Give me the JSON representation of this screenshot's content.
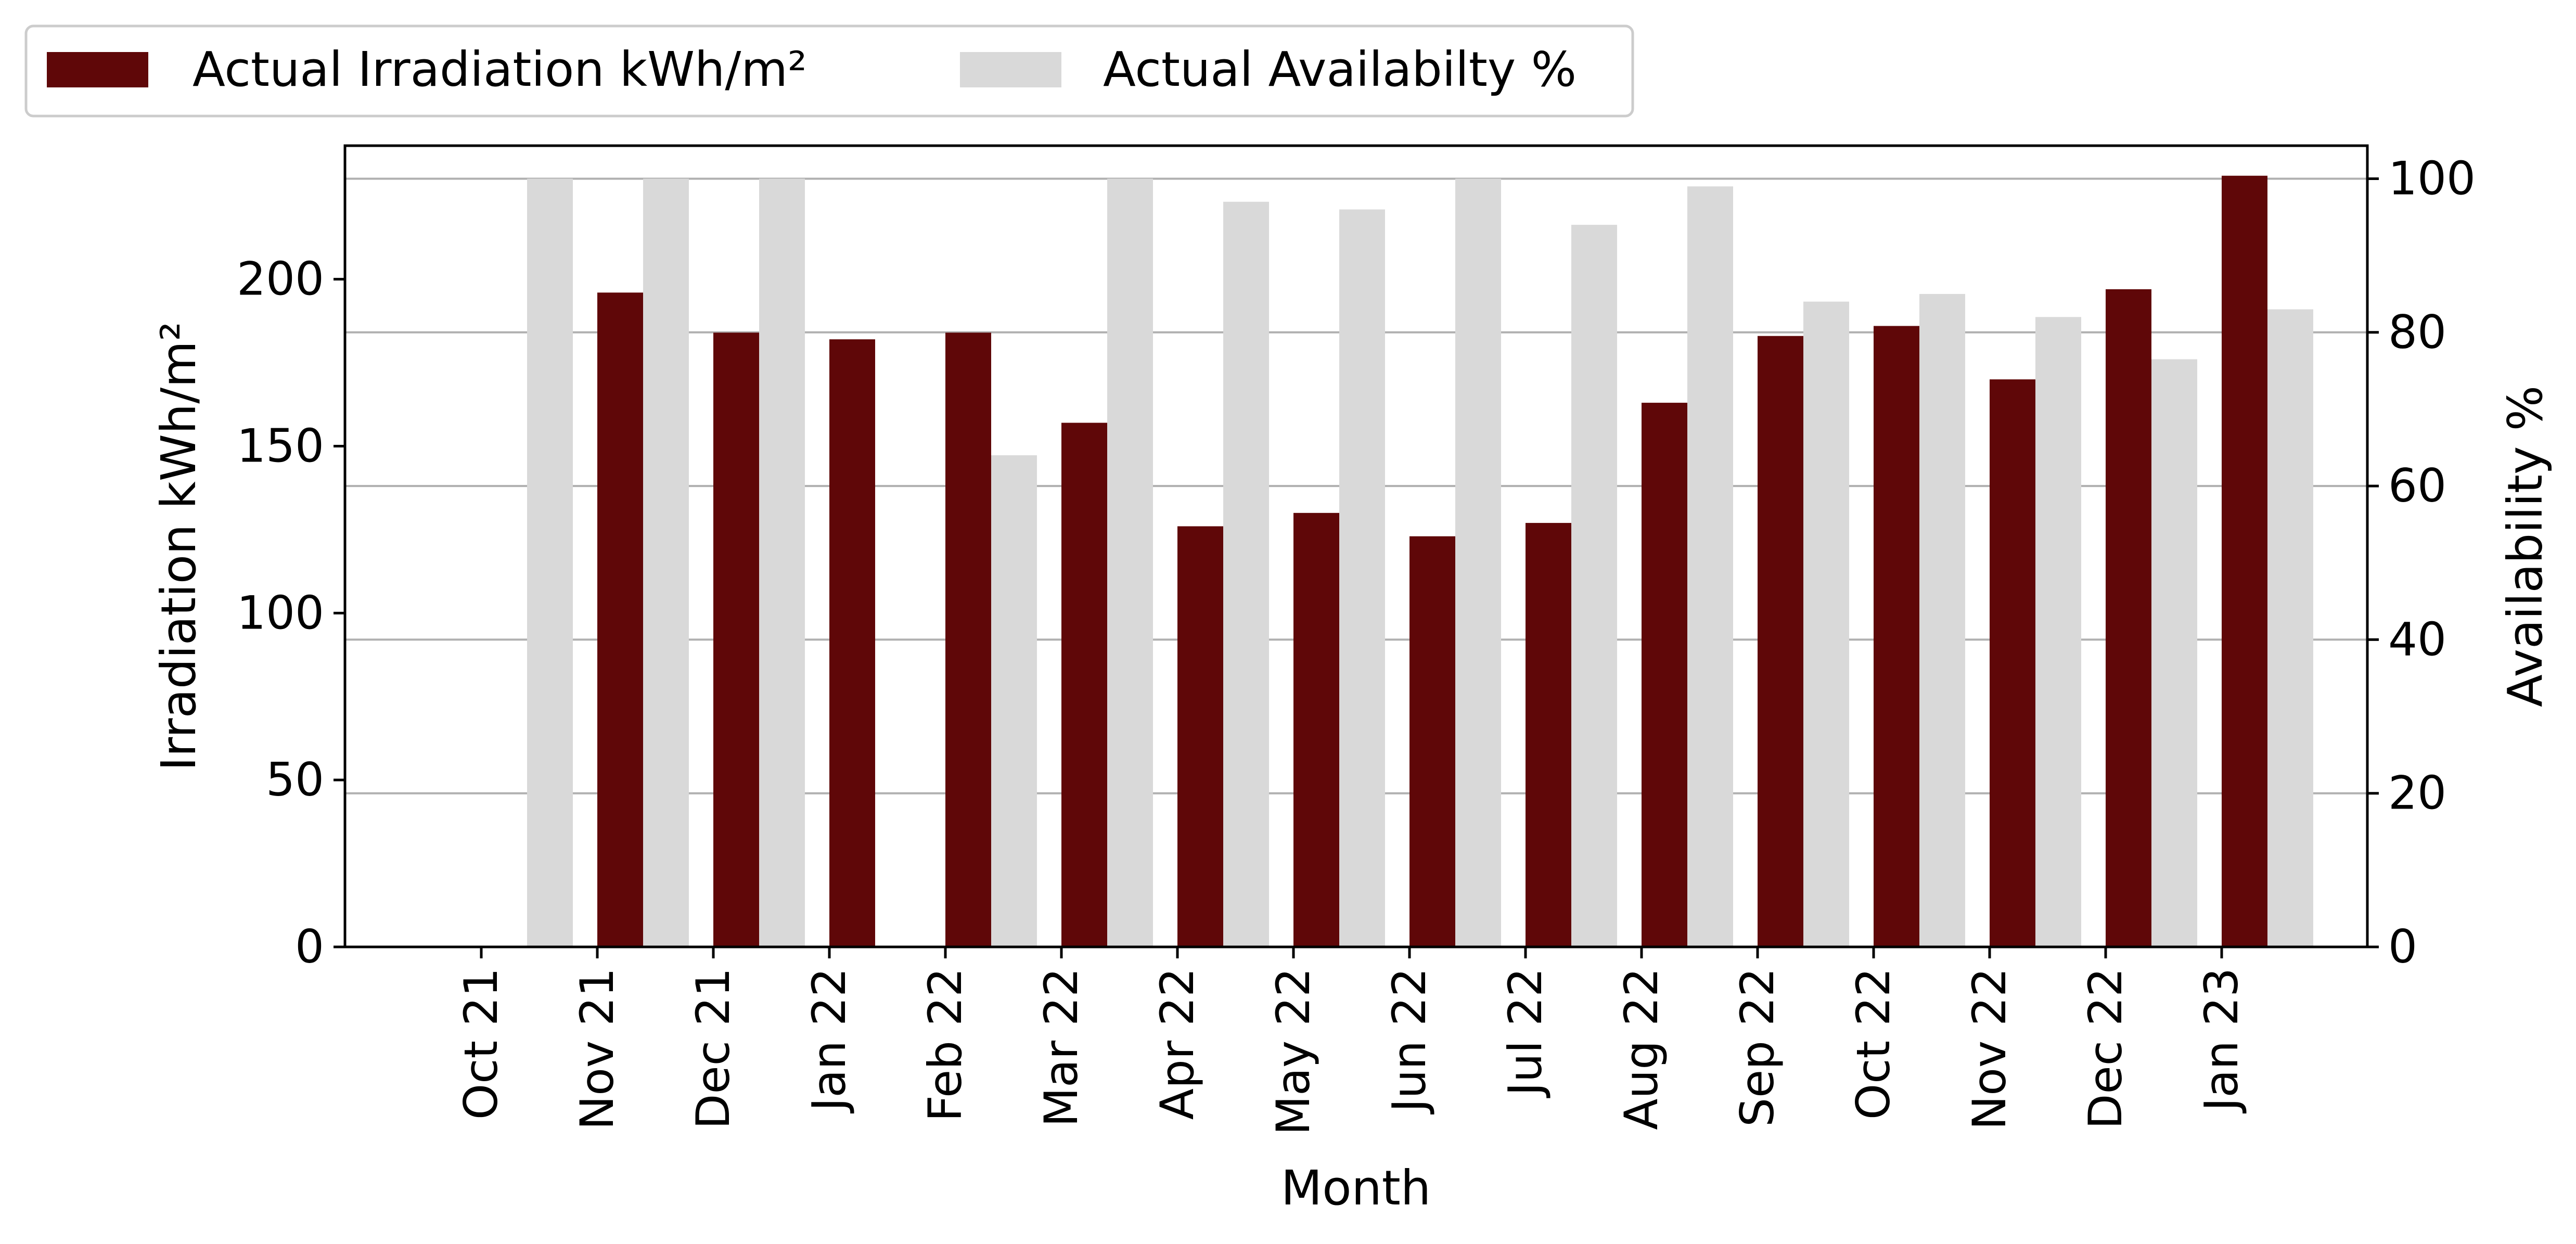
{
  "chart_data": {
    "type": "bar",
    "xlabel": "Month",
    "ylabel_left": "Irradiation kWh/m²",
    "ylabel_right": "Availability %",
    "ylim_left": [
      0,
      240
    ],
    "ylim_right": [
      0,
      104.3
    ],
    "yticks_left": [
      0,
      50,
      100,
      150,
      200
    ],
    "yticks_right": [
      0,
      20,
      40,
      60,
      80,
      100
    ],
    "grid": "horizontal (right axis)",
    "legend_position": "top-left",
    "categories": [
      "Oct 21",
      "Nov 21",
      "Dec 21",
      "Jan 22",
      "Feb 22",
      "Mar 22",
      "Apr 22",
      "May 22",
      "Jun 22",
      "Jul 22",
      "Aug 22",
      "Sep 22",
      "Oct 22",
      "Nov 22",
      "Dec 22",
      "Jan 23"
    ],
    "series": [
      {
        "name": "Actual Irradiation kWh/m²",
        "axis": "left",
        "color": "#5f0708",
        "values": [
          0,
          196,
          184,
          182,
          184,
          157,
          126,
          130,
          123,
          127,
          163,
          183,
          186,
          170,
          197,
          231
        ]
      },
      {
        "name": "Actual Availabilty %",
        "axis": "right",
        "color": "#d9d9d9",
        "values": [
          100,
          100,
          100,
          0,
          64,
          100,
          97,
          96,
          100,
          94,
          99,
          84,
          85,
          82,
          76.5,
          83
        ]
      }
    ]
  }
}
